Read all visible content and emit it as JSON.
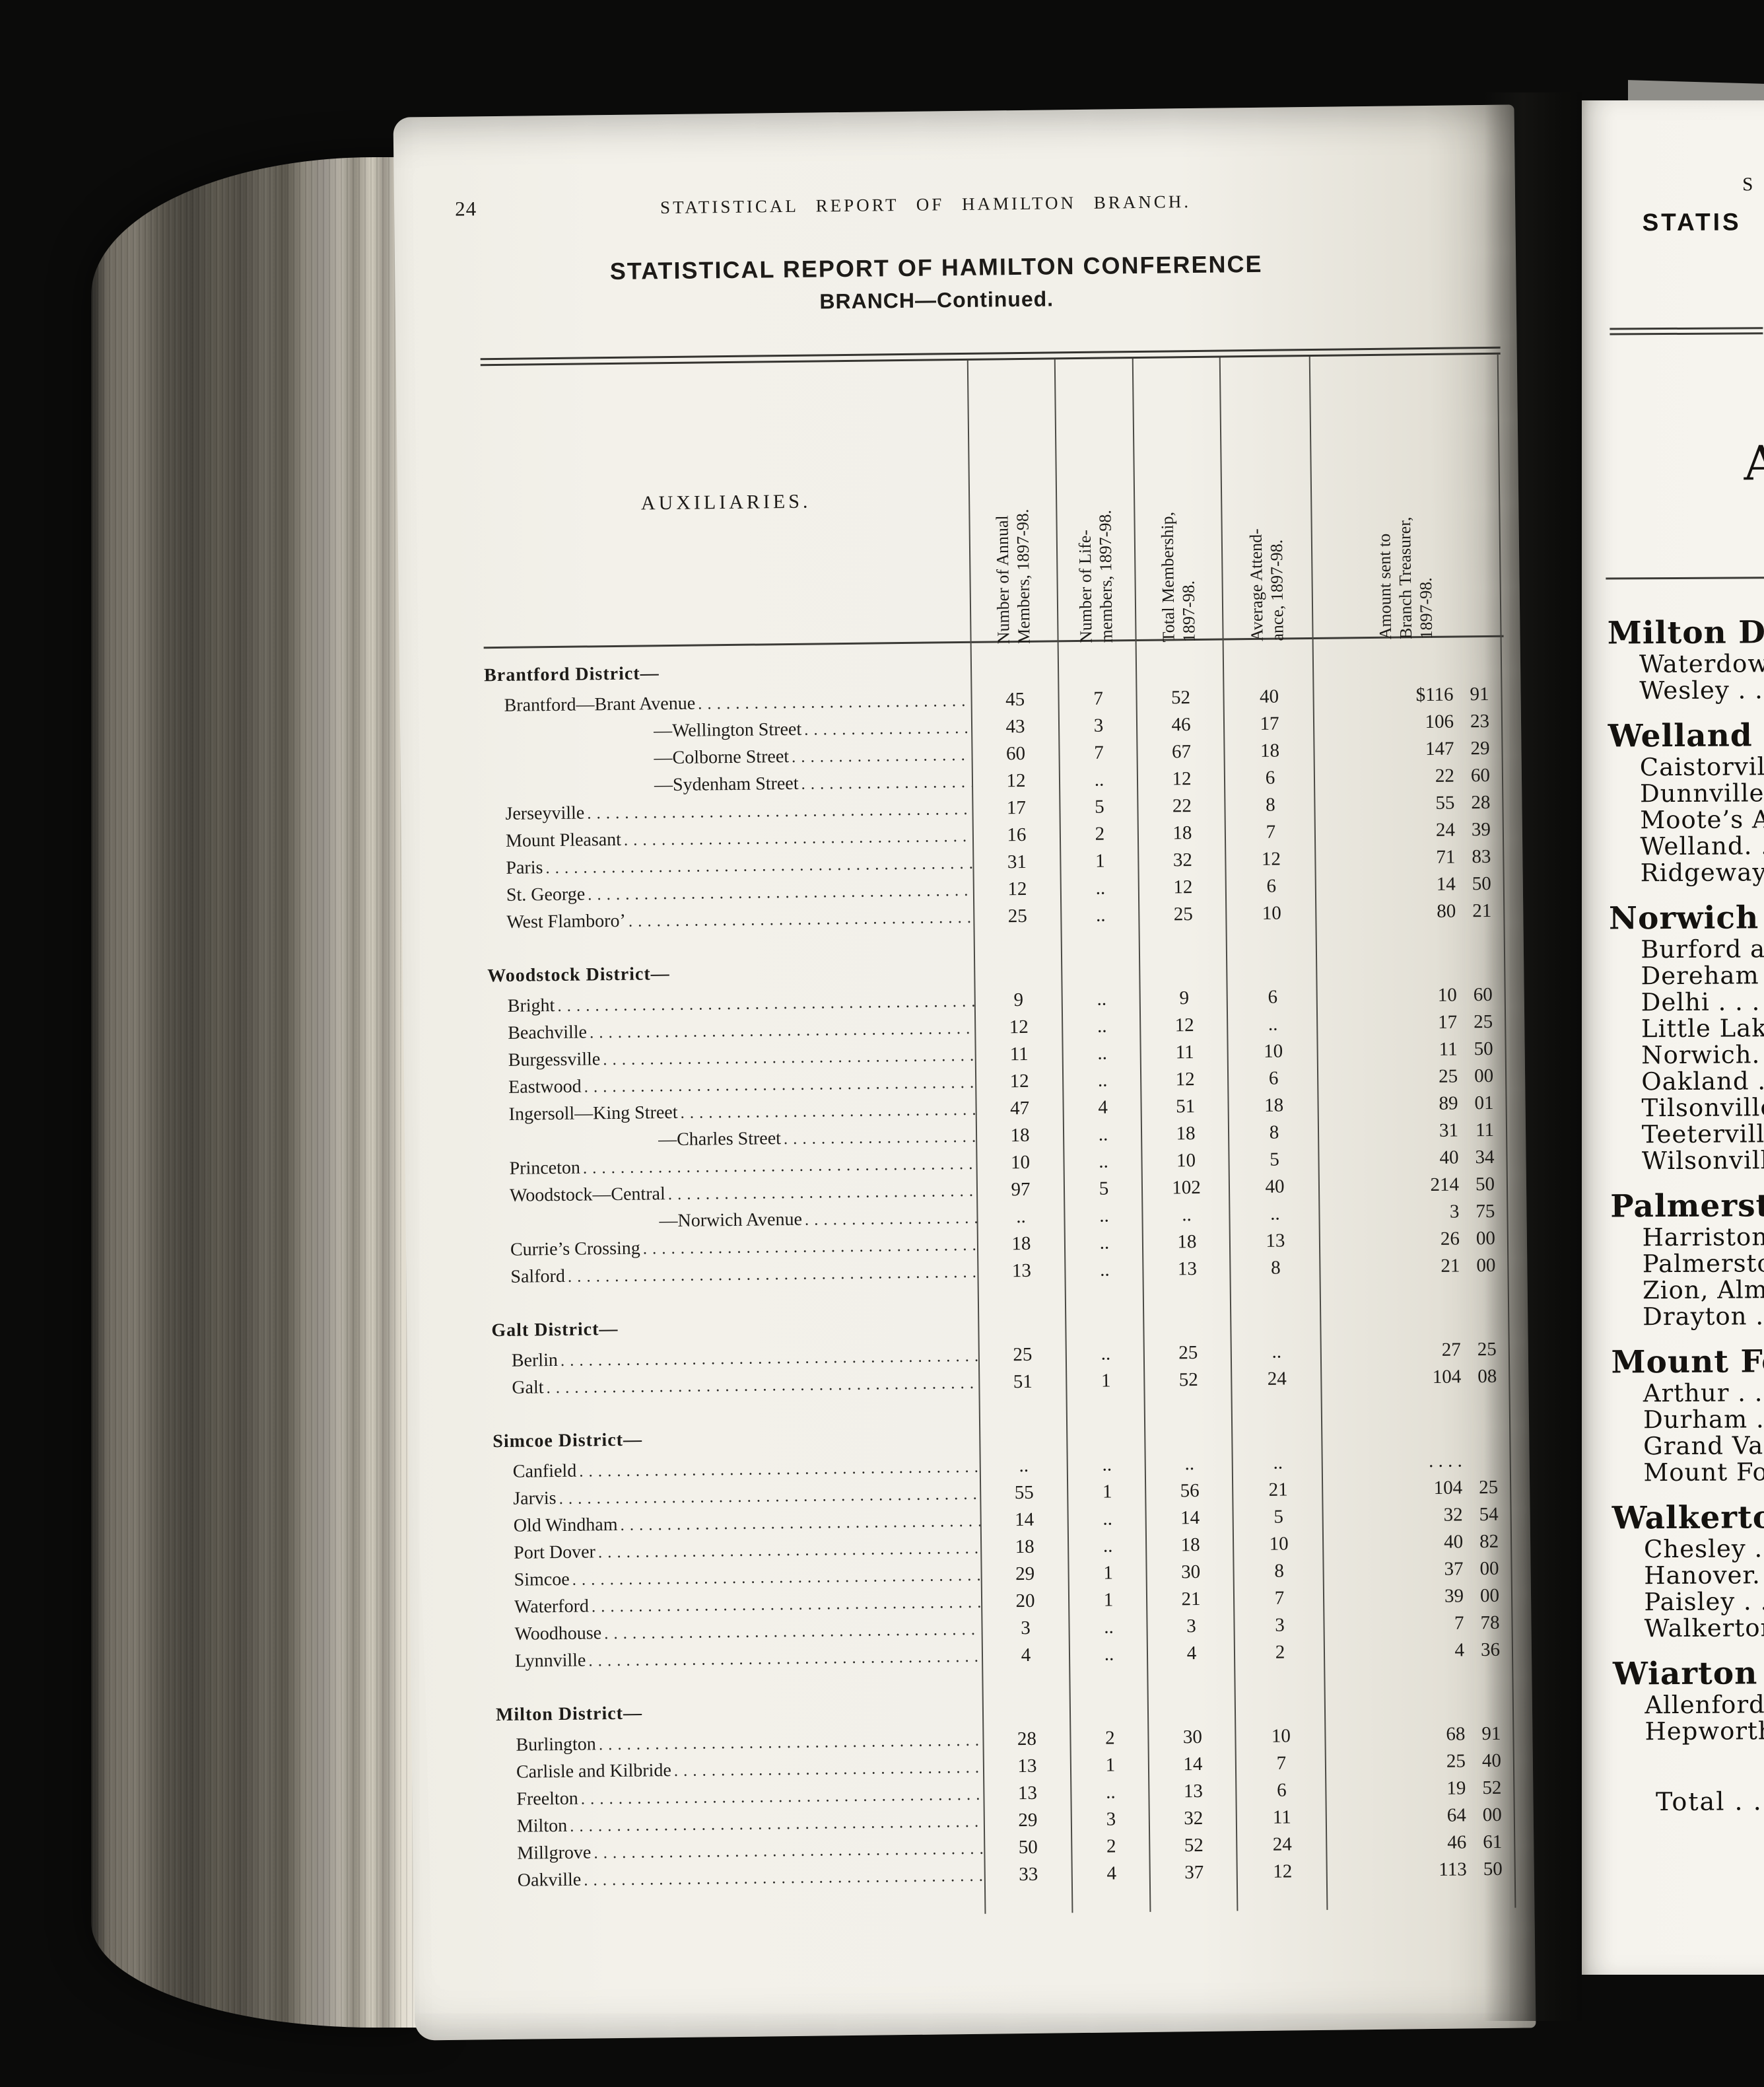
{
  "left_page": {
    "page_number": "24",
    "running_head": "STATISTICAL REPORT OF HAMILTON BRANCH.",
    "title": {
      "line1": "STATISTICAL REPORT OF HAMILTON CONFERENCE",
      "line2": "BRANCH—Continued."
    },
    "table": {
      "auxiliaries_label": "AUXILIARIES.",
      "columns": [
        {
          "lines": [
            "Number of Annual",
            "Members, 1897-98."
          ]
        },
        {
          "lines": [
            "Number of Life-",
            "members, 1897-98."
          ]
        },
        {
          "lines": [
            "Total Membership,",
            "1897-98."
          ]
        },
        {
          "lines": [
            "Average Attend-",
            "ance, 1897-98."
          ]
        },
        {
          "lines": [
            "Amount sent to",
            "Branch Treasurer,",
            "1897-98."
          ]
        }
      ],
      "rows": [
        {
          "t": "d",
          "label": "Brantford District—",
          "gap": false
        },
        {
          "t": "a",
          "ind": 1,
          "label": "Brantford—Brant Avenue",
          "v": [
            "45",
            "7",
            "52",
            "40",
            "$116 91"
          ]
        },
        {
          "t": "a",
          "ind": 2,
          "label": "—Wellington Street",
          "v": [
            "43",
            "3",
            "46",
            "17",
            "106 23"
          ]
        },
        {
          "t": "a",
          "ind": 2,
          "label": "—Colborne Street",
          "v": [
            "60",
            "7",
            "67",
            "18",
            "147 29"
          ]
        },
        {
          "t": "a",
          "ind": 2,
          "label": "—Sydenham Street",
          "v": [
            "12",
            "..",
            "12",
            "6",
            "22 60"
          ]
        },
        {
          "t": "a",
          "ind": 1,
          "label": "Jerseyville",
          "v": [
            "17",
            "5",
            "22",
            "8",
            "55 28"
          ]
        },
        {
          "t": "a",
          "ind": 1,
          "label": "Mount Pleasant",
          "v": [
            "16",
            "2",
            "18",
            "7",
            "24 39"
          ]
        },
        {
          "t": "a",
          "ind": 1,
          "label": "Paris",
          "v": [
            "31",
            "1",
            "32",
            "12",
            "71 83"
          ]
        },
        {
          "t": "a",
          "ind": 1,
          "label": "St. George",
          "v": [
            "12",
            "..",
            "12",
            "6",
            "14 50"
          ]
        },
        {
          "t": "a",
          "ind": 1,
          "label": "West Flamboro’",
          "v": [
            "25",
            "..",
            "25",
            "10",
            "80 21"
          ]
        },
        {
          "t": "d",
          "label": "Woodstock District—",
          "gap": true
        },
        {
          "t": "a",
          "ind": 1,
          "label": "Bright",
          "v": [
            "9",
            "..",
            "9",
            "6",
            "10 60"
          ]
        },
        {
          "t": "a",
          "ind": 1,
          "label": "Beachville",
          "v": [
            "12",
            "..",
            "12",
            "..",
            "17 25"
          ]
        },
        {
          "t": "a",
          "ind": 1,
          "label": "Burgessville",
          "v": [
            "11",
            "..",
            "11",
            "10",
            "11 50"
          ]
        },
        {
          "t": "a",
          "ind": 1,
          "label": "Eastwood",
          "v": [
            "12",
            "..",
            "12",
            "6",
            "25 00"
          ]
        },
        {
          "t": "a",
          "ind": 1,
          "label": "Ingersoll—King Street",
          "v": [
            "47",
            "4",
            "51",
            "18",
            "89 01"
          ]
        },
        {
          "t": "a",
          "ind": 2,
          "label": "—Charles Street",
          "v": [
            "18",
            "..",
            "18",
            "8",
            "31 11"
          ]
        },
        {
          "t": "a",
          "ind": 1,
          "label": "Princeton",
          "v": [
            "10",
            "..",
            "10",
            "5",
            "40 34"
          ]
        },
        {
          "t": "a",
          "ind": 1,
          "label": "Woodstock—Central",
          "v": [
            "97",
            "5",
            "102",
            "40",
            "214 50"
          ]
        },
        {
          "t": "a",
          "ind": 2,
          "label": "—Norwich Avenue",
          "v": [
            "..",
            "..",
            "..",
            "..",
            "3 75"
          ]
        },
        {
          "t": "a",
          "ind": 1,
          "label": "Currie’s Crossing",
          "v": [
            "18",
            "..",
            "18",
            "13",
            "26 00"
          ]
        },
        {
          "t": "a",
          "ind": 1,
          "label": "Salford",
          "v": [
            "13",
            "..",
            "13",
            "8",
            "21 00"
          ]
        },
        {
          "t": "d",
          "label": "Galt District—",
          "gap": true
        },
        {
          "t": "a",
          "ind": 1,
          "label": "Berlin",
          "v": [
            "25",
            "..",
            "25",
            "..",
            "27 25"
          ]
        },
        {
          "t": "a",
          "ind": 1,
          "label": "Galt",
          "v": [
            "51",
            "1",
            "52",
            "24",
            "104 08"
          ]
        },
        {
          "t": "d",
          "label": "Simcoe District—",
          "gap": true
        },
        {
          "t": "a",
          "ind": 1,
          "label": "Canfield",
          "v": [
            "..",
            "..",
            "..",
            "..",
            ". . . ."
          ]
        },
        {
          "t": "a",
          "ind": 1,
          "label": "Jarvis",
          "v": [
            "55",
            "1",
            "56",
            "21",
            "104 25"
          ]
        },
        {
          "t": "a",
          "ind": 1,
          "label": "Old Windham",
          "v": [
            "14",
            "..",
            "14",
            "5",
            "32 54"
          ]
        },
        {
          "t": "a",
          "ind": 1,
          "label": "Port Dover",
          "v": [
            "18",
            "..",
            "18",
            "10",
            "40 82"
          ]
        },
        {
          "t": "a",
          "ind": 1,
          "label": "Simcoe",
          "v": [
            "29",
            "1",
            "30",
            "8",
            "37 00"
          ]
        },
        {
          "t": "a",
          "ind": 1,
          "label": "Waterford",
          "v": [
            "20",
            "1",
            "21",
            "7",
            "39 00"
          ]
        },
        {
          "t": "a",
          "ind": 1,
          "label": "Woodhouse",
          "v": [
            "3",
            "..",
            "3",
            "3",
            "7 78"
          ]
        },
        {
          "t": "a",
          "ind": 1,
          "label": "Lynnville",
          "v": [
            "4",
            "..",
            "4",
            "2",
            "4 36"
          ]
        },
        {
          "t": "d",
          "label": "Milton District—",
          "gap": true
        },
        {
          "t": "a",
          "ind": 1,
          "label": "Burlington",
          "v": [
            "28",
            "2",
            "30",
            "10",
            "68 91"
          ]
        },
        {
          "t": "a",
          "ind": 1,
          "label": "Carlisle and Kilbride",
          "v": [
            "13",
            "1",
            "14",
            "7",
            "25 40"
          ]
        },
        {
          "t": "a",
          "ind": 1,
          "label": "Freelton",
          "v": [
            "13",
            "..",
            "13",
            "6",
            "19 52"
          ]
        },
        {
          "t": "a",
          "ind": 1,
          "label": "Milton",
          "v": [
            "29",
            "3",
            "32",
            "11",
            "64 00"
          ]
        },
        {
          "t": "a",
          "ind": 1,
          "label": "Millgrove",
          "v": [
            "50",
            "2",
            "52",
            "24",
            "46 61"
          ]
        },
        {
          "t": "a",
          "ind": 1,
          "label": "Oakville",
          "v": [
            "33",
            "4",
            "37",
            "12",
            "113 50"
          ]
        }
      ]
    }
  },
  "right_page": {
    "running_head_fragment": "S",
    "title_fragment": "STATIS",
    "auxiliaries_fragment": "A",
    "rows": [
      {
        "t": "h",
        "label": "Milton Dis"
      },
      {
        "t": "r",
        "label": "Waterdown"
      },
      {
        "t": "r",
        "label": "Wesley  . ."
      },
      {
        "t": "h",
        "label": "Welland D"
      },
      {
        "t": "r",
        "label": "Caistorville"
      },
      {
        "t": "r",
        "label": "Dunnville"
      },
      {
        "t": "r",
        "label": "Moote’s Ap"
      },
      {
        "t": "r",
        "label": "Welland. . ."
      },
      {
        "t": "r",
        "label": "Ridgeway"
      },
      {
        "t": "h",
        "label": "Norwich D"
      },
      {
        "t": "r",
        "label": "Burford an"
      },
      {
        "t": "r",
        "label": "Dereham C"
      },
      {
        "t": "r",
        "label": "Delhi  . . . ."
      },
      {
        "t": "r",
        "label": "Little Lake"
      },
      {
        "t": "r",
        "label": "Norwich. . ."
      },
      {
        "t": "r",
        "label": "Oakland  ."
      },
      {
        "t": "r",
        "label": "Tilsonville"
      },
      {
        "t": "r",
        "label": "Teeterville"
      },
      {
        "t": "r",
        "label": "Wilsonville"
      },
      {
        "t": "h",
        "label": "Palmersto"
      },
      {
        "t": "r",
        "label": "Harriston"
      },
      {
        "t": "r",
        "label": "Palmerston"
      },
      {
        "t": "r",
        "label": "Zion, Alma"
      },
      {
        "t": "r",
        "label": "Drayton  . ."
      },
      {
        "t": "h",
        "label": "Mount Fo"
      },
      {
        "t": "r",
        "label": "Arthur  . . ."
      },
      {
        "t": "r",
        "label": "Durham . . ."
      },
      {
        "t": "r",
        "label": "Grand Val"
      },
      {
        "t": "r",
        "label": "Mount For"
      },
      {
        "t": "h",
        "label": "Walkerto"
      },
      {
        "t": "r",
        "label": "Chesley  . ."
      },
      {
        "t": "r",
        "label": "Hanover. . ."
      },
      {
        "t": "r",
        "label": "Paisley  . ."
      },
      {
        "t": "r",
        "label": "Walkerton"
      },
      {
        "t": "h",
        "label": "Wiarton D"
      },
      {
        "t": "r",
        "label": "Allenford"
      },
      {
        "t": "r",
        "label": "Hepworth"
      },
      {
        "t": "total",
        "label": "Total  . . ."
      }
    ]
  }
}
